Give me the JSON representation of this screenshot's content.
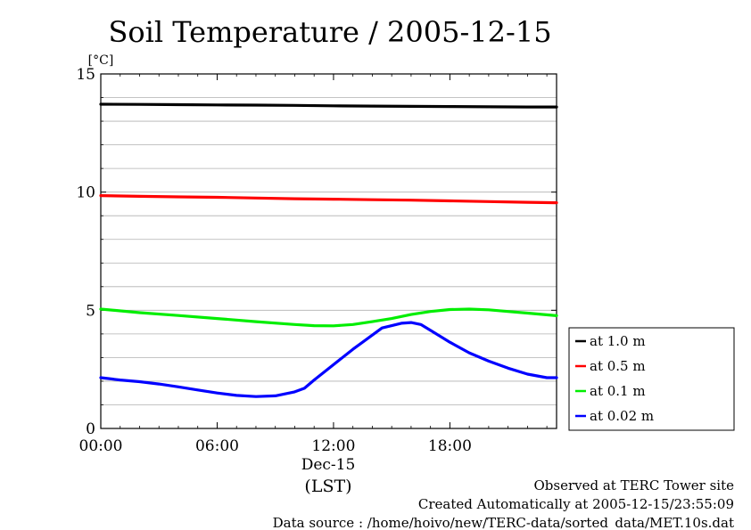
{
  "chart_data": {
    "type": "line",
    "title": "Soil Temperature / 2005-12-15",
    "ylabel": "[°C]",
    "xlabel": "(LST)",
    "date_label": "Dec-15",
    "xlim": [
      0,
      23.5
    ],
    "ylim": [
      0,
      15
    ],
    "x_ticks": [
      {
        "value": 0,
        "label": "00:00"
      },
      {
        "value": 6,
        "label": "06:00"
      },
      {
        "value": 12,
        "label": "12:00"
      },
      {
        "value": 18,
        "label": "18:00"
      }
    ],
    "y_ticks": [
      {
        "value": 0,
        "label": "0"
      },
      {
        "value": 5,
        "label": "5"
      },
      {
        "value": 10,
        "label": "10"
      },
      {
        "value": 15,
        "label": "15"
      }
    ],
    "grid": true,
    "legend_position": "right",
    "series": [
      {
        "name": "at 1.0 m",
        "color": "#000000",
        "x": [
          0,
          2,
          4,
          6,
          8,
          10,
          12,
          14,
          16,
          18,
          20,
          22,
          23.5
        ],
        "y": [
          13.72,
          13.71,
          13.7,
          13.69,
          13.68,
          13.67,
          13.65,
          13.64,
          13.63,
          13.62,
          13.61,
          13.6,
          13.6
        ]
      },
      {
        "name": "at 0.5 m",
        "color": "#ff0000",
        "x": [
          0,
          2,
          4,
          6,
          8,
          10,
          12,
          14,
          16,
          18,
          20,
          22,
          23.5
        ],
        "y": [
          9.85,
          9.82,
          9.8,
          9.78,
          9.75,
          9.72,
          9.7,
          9.68,
          9.66,
          9.63,
          9.6,
          9.57,
          9.55
        ]
      },
      {
        "name": "at 0.1 m",
        "color": "#00ee00",
        "x": [
          0,
          2,
          4,
          6,
          8,
          10,
          11,
          12,
          13,
          14,
          15,
          16,
          17,
          18,
          19,
          20,
          21,
          22,
          23.5
        ],
        "y": [
          5.05,
          4.9,
          4.78,
          4.65,
          4.52,
          4.4,
          4.35,
          4.34,
          4.4,
          4.52,
          4.65,
          4.82,
          4.95,
          5.03,
          5.05,
          5.02,
          4.95,
          4.88,
          4.77
        ]
      },
      {
        "name": "at 0.02 m",
        "color": "#0000ff",
        "x": [
          0,
          1,
          2,
          3,
          4,
          5,
          6,
          7,
          8,
          9,
          10,
          10.5,
          11,
          12,
          13,
          14,
          14.5,
          15,
          15.5,
          16,
          16.5,
          17,
          18,
          19,
          20,
          21,
          22,
          23,
          23.5
        ],
        "y": [
          2.15,
          2.05,
          1.98,
          1.88,
          1.76,
          1.63,
          1.5,
          1.4,
          1.35,
          1.38,
          1.55,
          1.7,
          2.05,
          2.7,
          3.35,
          3.95,
          4.25,
          4.35,
          4.45,
          4.48,
          4.4,
          4.15,
          3.65,
          3.2,
          2.85,
          2.55,
          2.3,
          2.15,
          2.15
        ]
      }
    ]
  },
  "footer": {
    "line1": "Observed at TERC Tower site",
    "line2": "Created Automatically at 2005-12-15/23:55:09",
    "line3": "Data source : /home/hoivo/new/TERC-data/sorted_data/MET.10s.dat"
  }
}
